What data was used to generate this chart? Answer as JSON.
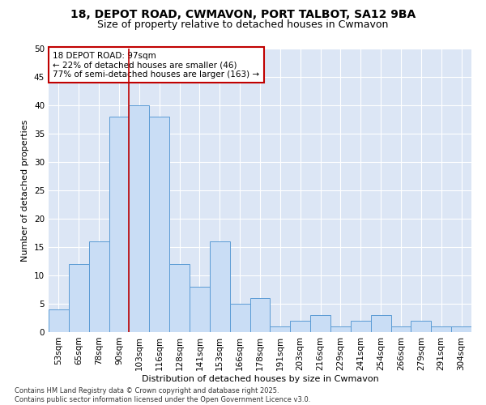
{
  "title_line1": "18, DEPOT ROAD, CWMAVON, PORT TALBOT, SA12 9BA",
  "title_line2": "Size of property relative to detached houses in Cwmavon",
  "xlabel": "Distribution of detached houses by size in Cwmavon",
  "ylabel": "Number of detached properties",
  "categories": [
    "53sqm",
    "65sqm",
    "78sqm",
    "90sqm",
    "103sqm",
    "116sqm",
    "128sqm",
    "141sqm",
    "153sqm",
    "166sqm",
    "178sqm",
    "191sqm",
    "203sqm",
    "216sqm",
    "229sqm",
    "241sqm",
    "254sqm",
    "266sqm",
    "279sqm",
    "291sqm",
    "304sqm"
  ],
  "values": [
    4,
    12,
    16,
    38,
    40,
    38,
    12,
    8,
    16,
    5,
    6,
    1,
    2,
    3,
    1,
    2,
    3,
    1,
    2,
    1,
    1
  ],
  "bar_color": "#c9ddf5",
  "bar_edge_color": "#5b9bd5",
  "vline_x": 3.5,
  "vline_color": "#c00000",
  "annotation_text": "18 DEPOT ROAD: 97sqm\n← 22% of detached houses are smaller (46)\n77% of semi-detached houses are larger (163) →",
  "annotation_box_color": "#c00000",
  "ylim": [
    0,
    50
  ],
  "yticks": [
    0,
    5,
    10,
    15,
    20,
    25,
    30,
    35,
    40,
    45,
    50
  ],
  "background_color": "#dce6f5",
  "grid_color": "#ffffff",
  "footer_text": "Contains HM Land Registry data © Crown copyright and database right 2025.\nContains public sector information licensed under the Open Government Licence v3.0.",
  "title_fontsize": 10,
  "subtitle_fontsize": 9,
  "label_fontsize": 8,
  "tick_fontsize": 7.5,
  "annotation_fontsize": 7.5,
  "footer_fontsize": 6
}
